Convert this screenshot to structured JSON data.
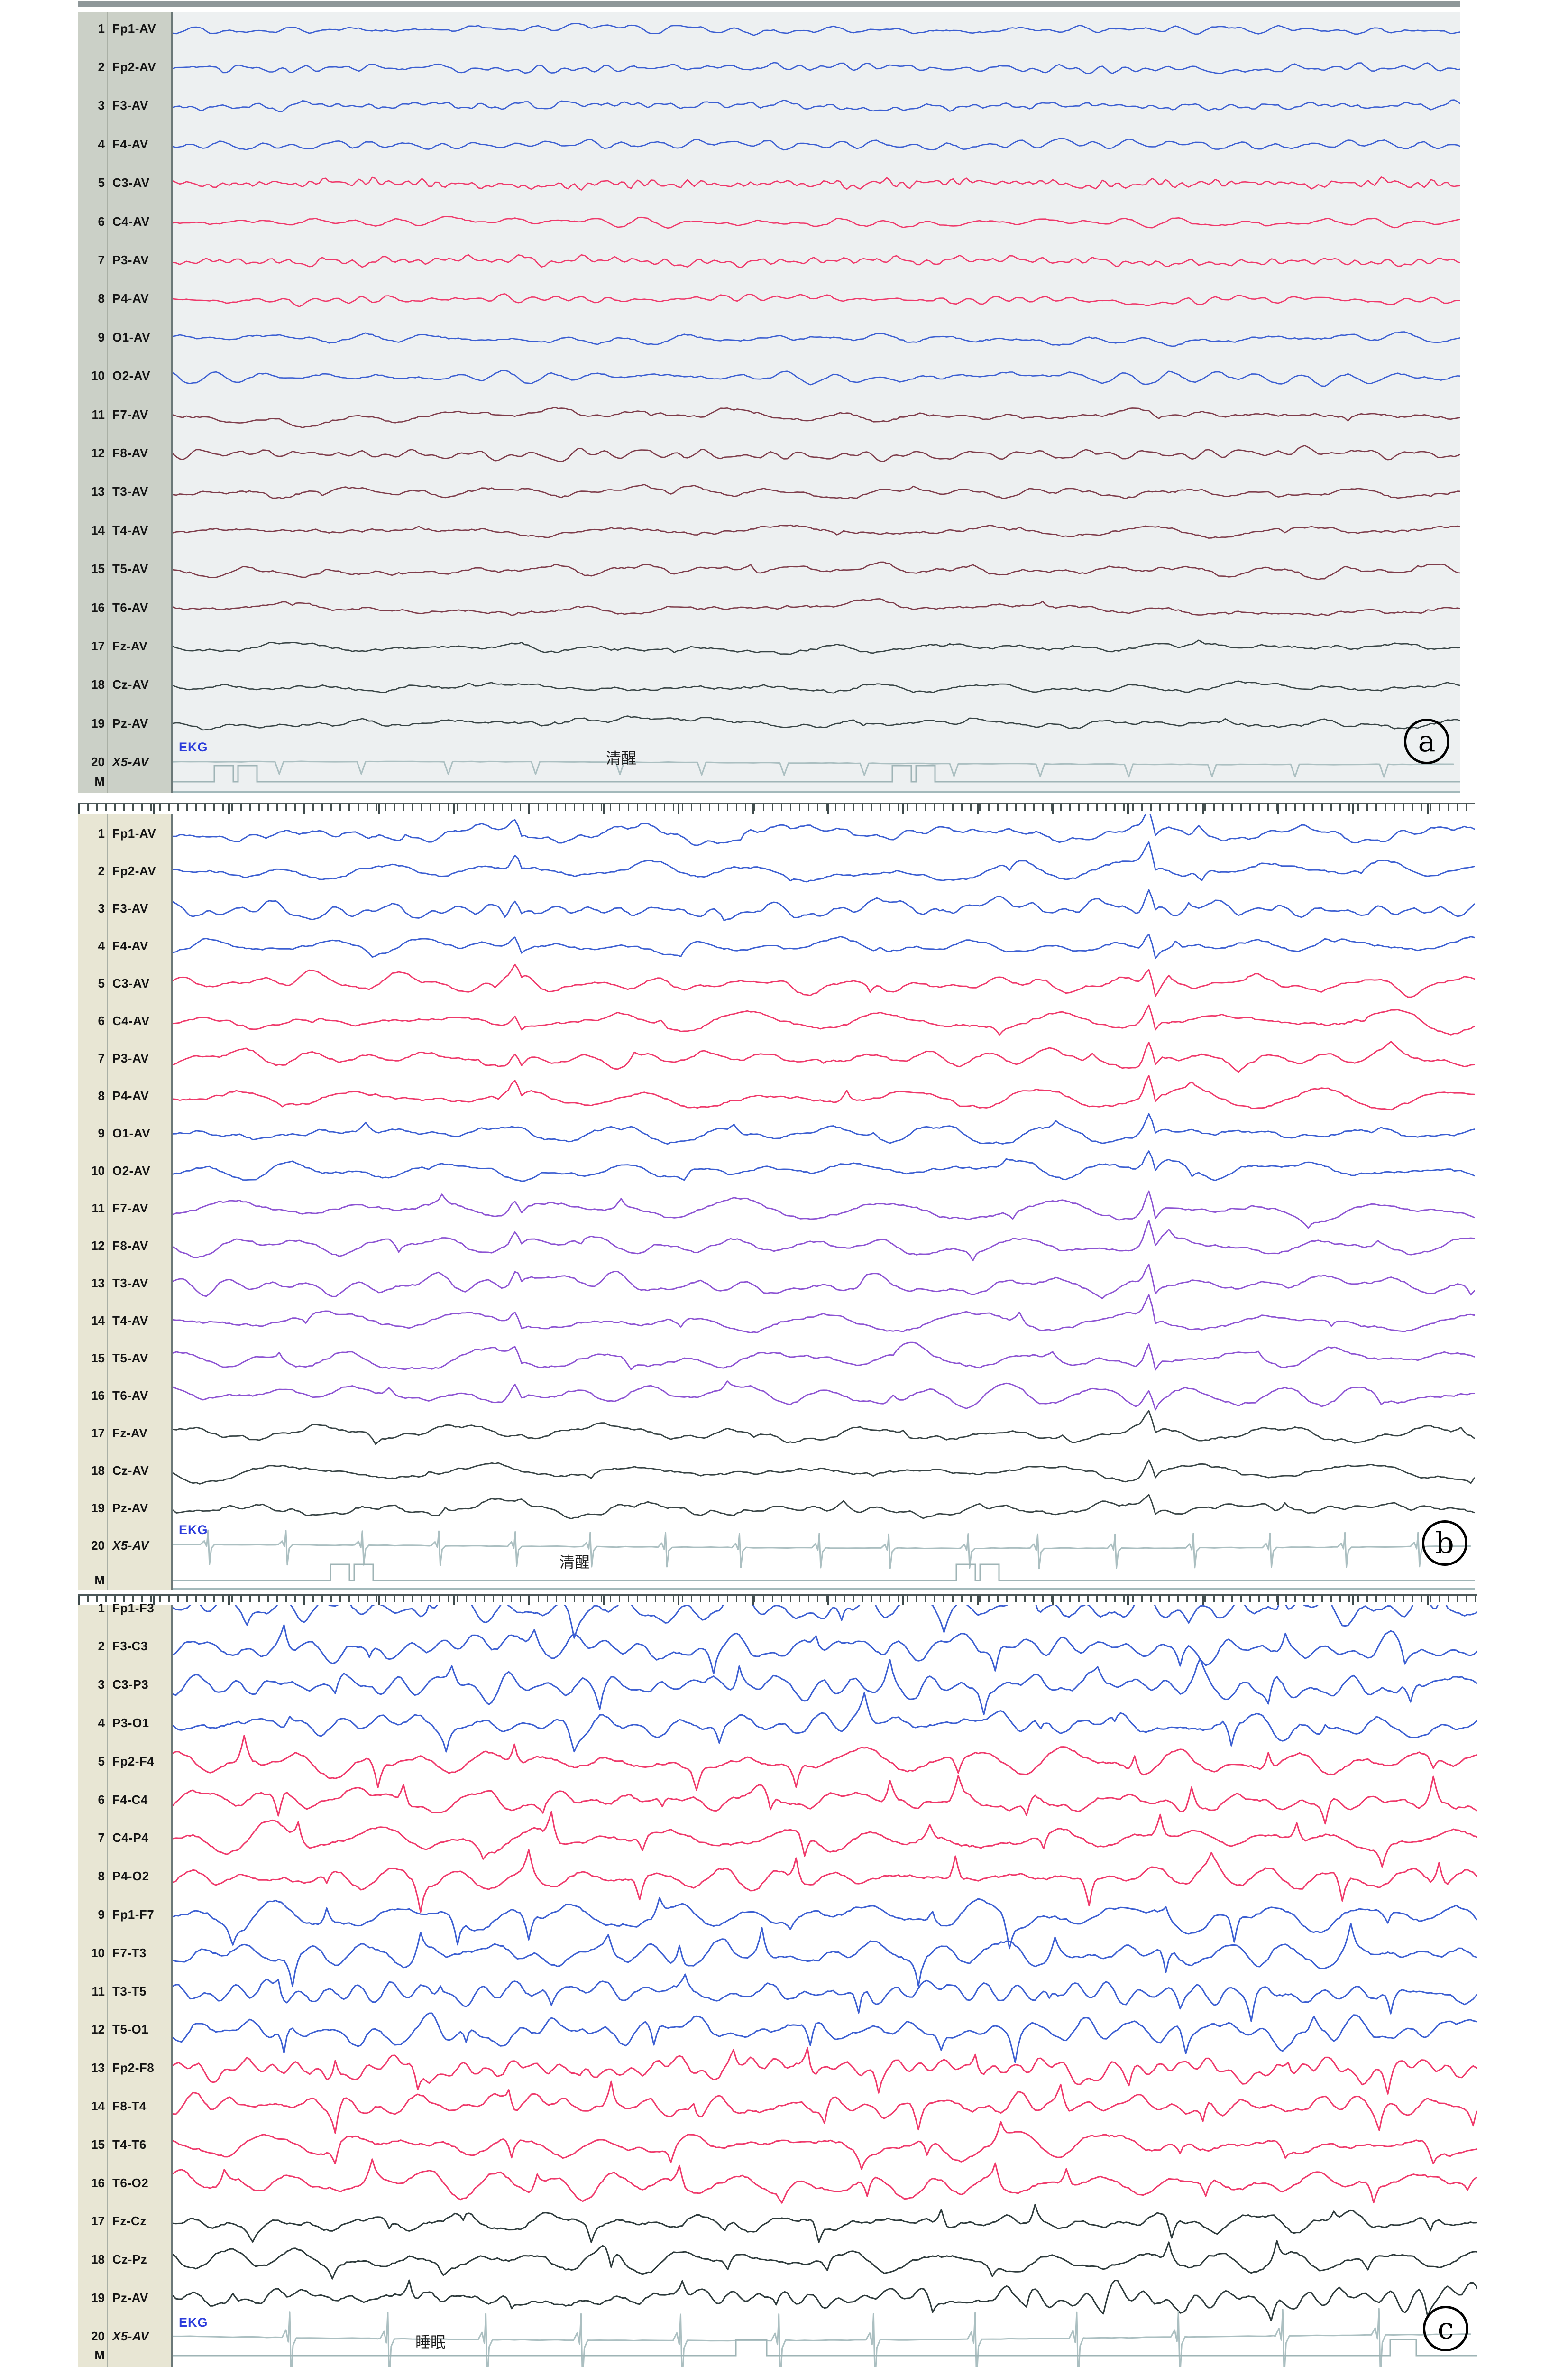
{
  "colors": {
    "blue": "#3c5fd2",
    "red": "#ef3a6b",
    "maroon": "#7f3d4b",
    "purple": "#8d54d3",
    "dark": "#394546",
    "dark_c": "#2e3b3c",
    "ekg_trace": "#abbfc1",
    "marker_trace": "#9fb4b6",
    "ekg_label": "#2b3cdb",
    "label_text": "#141414"
  },
  "panels": [
    {
      "id": "a",
      "circle_label": "a",
      "annotation": "清醒",
      "ekg_label": "EKG",
      "marker_label": "M",
      "ekg": {
        "style": "dip",
        "period": 182,
        "down": 26,
        "up": 0,
        "wander": 3
      },
      "marker_pulses": [
        [
          87,
          127
        ],
        [
          137,
          177
        ],
        [
          1517,
          1557
        ],
        [
          1567,
          1607
        ]
      ],
      "channels": [
        {
          "num": 1,
          "label": "Fp1-AV",
          "color": "blue",
          "amp": 11,
          "style": "fast"
        },
        {
          "num": 2,
          "label": "Fp2-AV",
          "color": "blue",
          "amp": 11,
          "style": "fast"
        },
        {
          "num": 3,
          "label": "F3-AV",
          "color": "blue",
          "amp": 11,
          "style": "fast"
        },
        {
          "num": 4,
          "label": "F4-AV",
          "color": "blue",
          "amp": 11,
          "style": "fast"
        },
        {
          "num": 5,
          "label": "C3-AV",
          "color": "red",
          "amp": 12,
          "style": "fast"
        },
        {
          "num": 6,
          "label": "C4-AV",
          "color": "red",
          "amp": 12,
          "style": "fast"
        },
        {
          "num": 7,
          "label": "P3-AV",
          "color": "red",
          "amp": 12,
          "style": "fast"
        },
        {
          "num": 8,
          "label": "P4-AV",
          "color": "red",
          "amp": 12,
          "style": "fast"
        },
        {
          "num": 9,
          "label": "O1-AV",
          "color": "blue",
          "amp": 14,
          "style": "rhythm"
        },
        {
          "num": 10,
          "label": "O2-AV",
          "color": "blue",
          "amp": 14,
          "style": "rhythm"
        },
        {
          "num": 11,
          "label": "F7-AV",
          "color": "maroon",
          "amp": 13,
          "style": "slow"
        },
        {
          "num": 12,
          "label": "F8-AV",
          "color": "maroon",
          "amp": 16,
          "style": "fast"
        },
        {
          "num": 13,
          "label": "T3-AV",
          "color": "maroon",
          "amp": 14,
          "style": "slow"
        },
        {
          "num": 14,
          "label": "T4-AV",
          "color": "maroon",
          "amp": 14,
          "style": "slow"
        },
        {
          "num": 15,
          "label": "T5-AV",
          "color": "maroon",
          "amp": 14,
          "style": "slow"
        },
        {
          "num": 16,
          "label": "T6-AV",
          "color": "maroon",
          "amp": 14,
          "style": "slow"
        },
        {
          "num": 17,
          "label": "Fz-AV",
          "color": "dark",
          "amp": 10,
          "style": "slow"
        },
        {
          "num": 18,
          "label": "Cz-AV",
          "color": "dark",
          "amp": 10,
          "style": "slow"
        },
        {
          "num": 19,
          "label": "Pz-AV",
          "color": "dark",
          "amp": 10,
          "style": "slow"
        },
        {
          "num": 20,
          "label": "X5-AV",
          "color": "ekg_trace",
          "amp": 0,
          "style": "ekg"
        }
      ]
    },
    {
      "id": "b",
      "circle_label": "b",
      "annotation": "清醒",
      "ekg_label": "EKG",
      "marker_label": "M",
      "ekg": {
        "style": "qrs",
        "period": 158,
        "down": 42,
        "up": 30,
        "wander": 4
      },
      "marker_pulses": [
        [
          332,
          372
        ],
        [
          382,
          422
        ],
        [
          1652,
          1692
        ],
        [
          1702,
          1742
        ]
      ],
      "channels": [
        {
          "num": 1,
          "label": "Fp1-AV",
          "color": "blue",
          "amp": 26,
          "style": "slow"
        },
        {
          "num": 2,
          "label": "Fp2-AV",
          "color": "blue",
          "amp": 26,
          "style": "slow"
        },
        {
          "num": 3,
          "label": "F3-AV",
          "color": "blue",
          "amp": 26,
          "style": "slow"
        },
        {
          "num": 4,
          "label": "F4-AV",
          "color": "blue",
          "amp": 26,
          "style": "slow"
        },
        {
          "num": 5,
          "label": "C3-AV",
          "color": "red",
          "amp": 28,
          "style": "slow"
        },
        {
          "num": 6,
          "label": "C4-AV",
          "color": "red",
          "amp": 28,
          "style": "slow"
        },
        {
          "num": 7,
          "label": "P3-AV",
          "color": "red",
          "amp": 28,
          "style": "slow"
        },
        {
          "num": 8,
          "label": "P4-AV",
          "color": "red",
          "amp": 30,
          "style": "slow"
        },
        {
          "num": 9,
          "label": "O1-AV",
          "color": "blue",
          "amp": 24,
          "style": "slow"
        },
        {
          "num": 10,
          "label": "O2-AV",
          "color": "blue",
          "amp": 24,
          "style": "slow"
        },
        {
          "num": 11,
          "label": "F7-AV",
          "color": "purple",
          "amp": 30,
          "style": "slow"
        },
        {
          "num": 12,
          "label": "F8-AV",
          "color": "purple",
          "amp": 30,
          "style": "slow"
        },
        {
          "num": 13,
          "label": "T3-AV",
          "color": "purple",
          "amp": 30,
          "style": "slow"
        },
        {
          "num": 14,
          "label": "T4-AV",
          "color": "purple",
          "amp": 30,
          "style": "slow"
        },
        {
          "num": 15,
          "label": "T5-AV",
          "color": "purple",
          "amp": 30,
          "style": "slow"
        },
        {
          "num": 16,
          "label": "T6-AV",
          "color": "purple",
          "amp": 28,
          "style": "slow"
        },
        {
          "num": 17,
          "label": "Fz-AV",
          "color": "dark",
          "amp": 20,
          "style": "slow"
        },
        {
          "num": 18,
          "label": "Cz-AV",
          "color": "dark",
          "amp": 20,
          "style": "slow"
        },
        {
          "num": 19,
          "label": "Pz-AV",
          "color": "dark",
          "amp": 20,
          "style": "slow"
        },
        {
          "num": 20,
          "label": "X5-AV",
          "color": "ekg_trace",
          "amp": 0,
          "style": "ekg"
        }
      ]
    },
    {
      "id": "c",
      "circle_label": "c",
      "annotation": "睡眠",
      "ekg_label": "EKG",
      "marker_label": "M",
      "ekg": {
        "style": "qrs",
        "period": 205,
        "down": 88,
        "up": 55,
        "wander": 7
      },
      "marker_pulses": [
        [
          1187,
          1252
        ],
        [
          2567,
          2622
        ]
      ],
      "channels": [
        {
          "num": 1,
          "label": "Fp1-F3",
          "color": "blue",
          "amp": 40,
          "style": "burst"
        },
        {
          "num": 2,
          "label": "F3-C3",
          "color": "blue",
          "amp": 40,
          "style": "burst"
        },
        {
          "num": 3,
          "label": "C3-P3",
          "color": "blue",
          "amp": 40,
          "style": "burst"
        },
        {
          "num": 4,
          "label": "P3-O1",
          "color": "blue",
          "amp": 40,
          "style": "burst"
        },
        {
          "num": 5,
          "label": "Fp2-F4",
          "color": "red",
          "amp": 42,
          "style": "burst"
        },
        {
          "num": 6,
          "label": "F4-C4",
          "color": "red",
          "amp": 42,
          "style": "burst"
        },
        {
          "num": 7,
          "label": "C4-P4",
          "color": "red",
          "amp": 42,
          "style": "burst"
        },
        {
          "num": 8,
          "label": "P4-O2",
          "color": "red",
          "amp": 42,
          "style": "burst"
        },
        {
          "num": 9,
          "label": "Fp1-F7",
          "color": "blue",
          "amp": 46,
          "style": "burst"
        },
        {
          "num": 10,
          "label": "F7-T3",
          "color": "blue",
          "amp": 46,
          "style": "burst"
        },
        {
          "num": 11,
          "label": "T3-T5",
          "color": "blue",
          "amp": 44,
          "style": "burst"
        },
        {
          "num": 12,
          "label": "T5-O1",
          "color": "blue",
          "amp": 44,
          "style": "burst"
        },
        {
          "num": 13,
          "label": "Fp2-F8",
          "color": "red",
          "amp": 42,
          "style": "burst"
        },
        {
          "num": 14,
          "label": "F8-T4",
          "color": "red",
          "amp": 42,
          "style": "burst"
        },
        {
          "num": 15,
          "label": "T4-T6",
          "color": "red",
          "amp": 42,
          "style": "burst"
        },
        {
          "num": 16,
          "label": "T6-O2",
          "color": "red",
          "amp": 40,
          "style": "burst"
        },
        {
          "num": 17,
          "label": "Fz-Cz",
          "color": "dark_c",
          "amp": 36,
          "style": "burst"
        },
        {
          "num": 18,
          "label": "Cz-Pz",
          "color": "dark_c",
          "amp": 36,
          "style": "burst"
        },
        {
          "num": 19,
          "label": "Pz-AV",
          "color": "dark_c",
          "amp": 34,
          "style": "burst"
        },
        {
          "num": 20,
          "label": "X5-AV",
          "color": "ekg_trace",
          "amp": 0,
          "style": "ekg"
        }
      ]
    }
  ]
}
